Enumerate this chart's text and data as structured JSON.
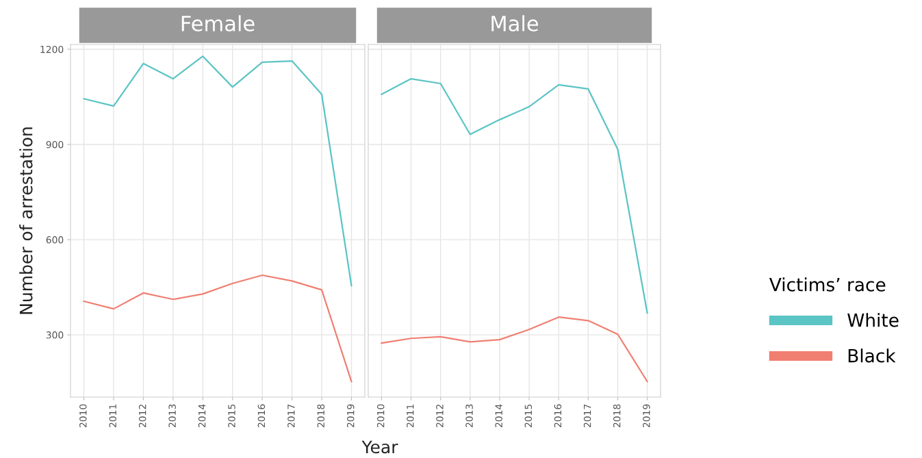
{
  "chart_data": [
    {
      "type": "line",
      "title": "Female",
      "ylabel": "Number of arrestation",
      "xlabel": "Year",
      "legend_title": "Victims’ race",
      "legend": "right",
      "categories": [
        "2010",
        "2011",
        "2012",
        "2013",
        "2014",
        "2015",
        "2016",
        "2017",
        "2018",
        "2019"
      ],
      "series": [
        {
          "name": "White",
          "color": "#5bc4c4",
          "values": [
            1044,
            1021,
            1155,
            1107,
            1178,
            1081,
            1159,
            1163,
            1058,
            455
          ]
        },
        {
          "name": "Black",
          "color": "#f07f72",
          "values": [
            406,
            382,
            432,
            412,
            429,
            462,
            488,
            470,
            442,
            153
          ]
        }
      ],
      "ylim": [
        104,
        1215
      ],
      "yticks": [
        300,
        600,
        900,
        1200
      ],
      "grid": true
    },
    {
      "type": "line",
      "title": "Male",
      "tick_labels": "x",
      "categories": [
        "2010",
        "2011",
        "2012",
        "2013",
        "2014",
        "2015",
        "2016",
        "2017",
        "2018",
        "2019"
      ],
      "series": [
        {
          "color": "#5bc4c4",
          "values": [
            1058,
            1107,
            1092,
            932,
            978,
            1019,
            1088,
            1075,
            885,
            369
          ]
        },
        {
          "color": "#f07f72",
          "values": [
            274,
            289,
            294,
            278,
            285,
            317,
            356,
            345,
            302,
            153
          ]
        }
      ],
      "ylim": [
        104,
        1215
      ],
      "yticks": [
        300,
        600,
        900,
        1200
      ],
      "grid": true
    }
  ]
}
